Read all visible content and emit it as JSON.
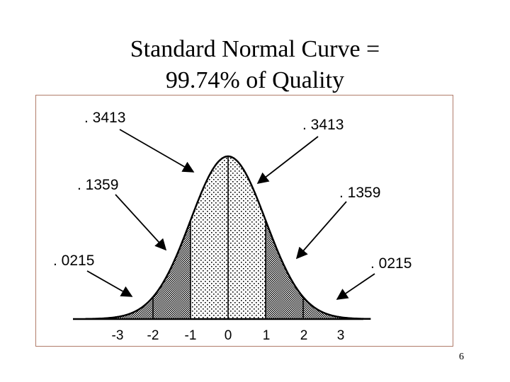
{
  "slide": {
    "title_line1": "Standard Normal Curve =",
    "title_line2": "99.74% of Quality",
    "page_number": "6"
  },
  "diagram": {
    "labels": {
      "upper_left": ". 3413",
      "upper_right": ". 3413",
      "mid_left": ". 1359",
      "mid_right": ". 1359",
      "lower_left": ". 0215",
      "lower_right": ". 0215"
    },
    "axis_ticks": [
      "-3",
      "-2",
      "-1",
      "0",
      "1",
      "2",
      "3"
    ]
  }
}
